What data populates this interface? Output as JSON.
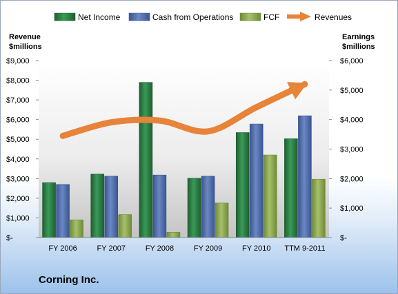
{
  "chart_data": {
    "type": "bar",
    "company": "Corning Inc.",
    "categories": [
      "FY 2006",
      "FY 2007",
      "FY 2008",
      "FY 2009",
      "FY 2010",
      "TTM 9-2011"
    ],
    "left_axis": {
      "label_line1": "Revenue",
      "label_line2": "$millions",
      "range": [
        0,
        9000
      ],
      "ticks": [
        0,
        1000,
        2000,
        3000,
        4000,
        5000,
        6000,
        7000,
        8000,
        9000
      ],
      "tick_labels": [
        "$-",
        "$1,000",
        "$2,000",
        "$3,000",
        "$4,000",
        "$5,000",
        "$6,000",
        "$7,000",
        "$8,000",
        "$9,000"
      ]
    },
    "right_axis": {
      "label_line1": "Earnings",
      "label_line2": "$millions",
      "range": [
        0,
        6000
      ],
      "ticks": [
        0,
        1000,
        2000,
        3000,
        4000,
        5000,
        6000
      ],
      "tick_labels": [
        "$-",
        "$1,000",
        "$2,000",
        "$3,000",
        "$4,000",
        "$5,000",
        "$6,000"
      ]
    },
    "series": [
      {
        "name": "Net Income",
        "kind": "bar",
        "axis": "right",
        "color": "#2e7d45",
        "values": [
          1860,
          2150,
          5260,
          2010,
          3560,
          3350
        ]
      },
      {
        "name": "Cash from Operations",
        "kind": "bar",
        "axis": "right",
        "color": "#4f6fb0",
        "values": [
          1800,
          2080,
          2120,
          2080,
          3850,
          4130
        ]
      },
      {
        "name": "FCF",
        "kind": "bar",
        "axis": "right",
        "color": "#8aa64e",
        "values": [
          600,
          780,
          180,
          1170,
          2800,
          1980
        ]
      },
      {
        "name": "Revenues",
        "kind": "line",
        "axis": "left",
        "color": "#e8833a",
        "values": [
          5170,
          5860,
          5950,
          5400,
          6630,
          7800
        ]
      }
    ],
    "legend_position": "top",
    "grid": false
  }
}
